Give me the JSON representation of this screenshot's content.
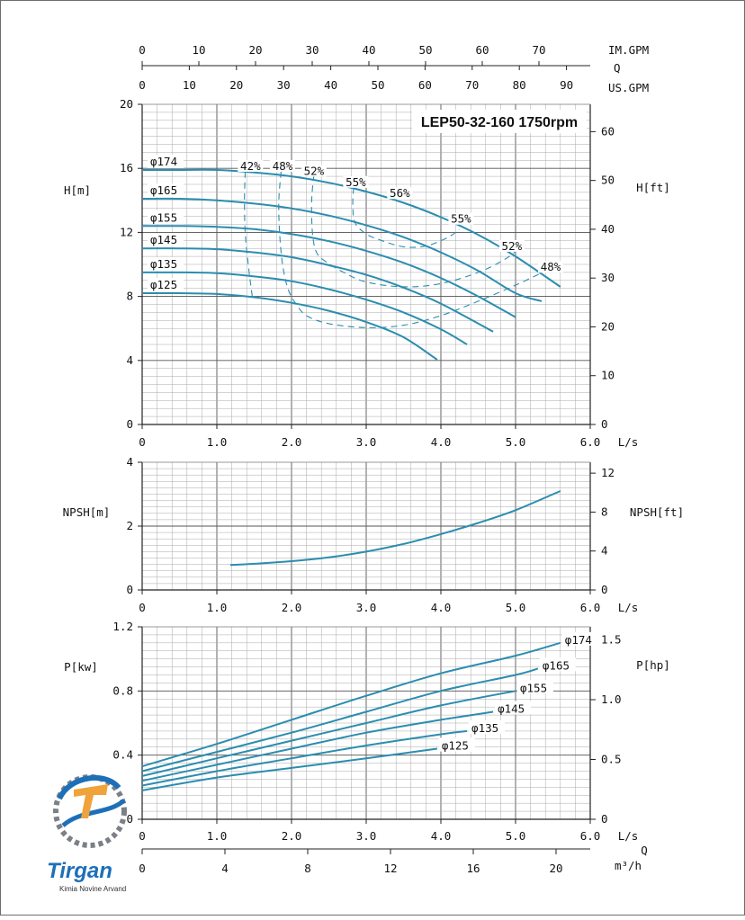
{
  "chart_data": [
    {
      "type": "line",
      "title": "LEP50-32-160 1750rpm",
      "ylabel": "H[m]",
      "ylabel_right": "H[ft]",
      "xlabel": "L/s",
      "xlim": [
        0,
        6
      ],
      "ylim": [
        0,
        20
      ],
      "yticks": [
        0,
        4,
        8,
        12,
        16,
        20
      ],
      "yticks_right": [
        0,
        10,
        20,
        30,
        40,
        50,
        60
      ],
      "xticks": [
        "0",
        "1.0",
        "2.0",
        "3.0",
        "4.0",
        "5.0",
        "6.0"
      ],
      "top_axes": [
        {
          "label": "IM.GPM",
          "ticks": [
            0,
            10,
            20,
            30,
            40,
            50,
            60,
            70
          ]
        },
        {
          "label": "Q",
          "ticks": []
        },
        {
          "label": "US.GPM",
          "ticks": [
            0,
            10,
            20,
            30,
            40,
            50,
            60,
            70,
            80,
            90
          ]
        }
      ],
      "series": [
        {
          "name": "φ174",
          "x": [
            0,
            0.5,
            1.0,
            1.5,
            2.0,
            2.5,
            3.0,
            3.5,
            4.0,
            4.5,
            5.0,
            5.6
          ],
          "y": [
            15.9,
            15.9,
            15.9,
            15.75,
            15.5,
            15.1,
            14.55,
            13.85,
            12.95,
            11.85,
            10.5,
            8.6
          ]
        },
        {
          "name": "φ165",
          "x": [
            0,
            0.5,
            1.0,
            1.5,
            2.0,
            2.5,
            3.0,
            3.5,
            4.0,
            4.5,
            5.0,
            5.35
          ],
          "y": [
            14.1,
            14.1,
            14.0,
            13.8,
            13.5,
            13.05,
            12.45,
            11.7,
            10.75,
            9.6,
            8.2,
            7.7
          ]
        },
        {
          "name": "φ155",
          "x": [
            0,
            0.5,
            1.0,
            1.5,
            2.0,
            2.5,
            3.0,
            3.5,
            4.0,
            4.5,
            5.0
          ],
          "y": [
            12.4,
            12.4,
            12.35,
            12.2,
            11.9,
            11.45,
            10.85,
            10.1,
            9.15,
            8.0,
            6.7
          ]
        },
        {
          "name": "φ145",
          "x": [
            0,
            0.5,
            1.0,
            1.5,
            2.0,
            2.5,
            3.0,
            3.5,
            4.0,
            4.7
          ],
          "y": [
            11.0,
            11.0,
            10.95,
            10.75,
            10.45,
            9.95,
            9.35,
            8.55,
            7.55,
            5.8
          ]
        },
        {
          "name": "φ135",
          "x": [
            0,
            0.5,
            1.0,
            1.5,
            2.0,
            2.5,
            3.0,
            3.5,
            4.0,
            4.35
          ],
          "y": [
            9.5,
            9.5,
            9.45,
            9.25,
            8.95,
            8.45,
            7.8,
            7.0,
            5.95,
            5.0
          ]
        },
        {
          "name": "φ125",
          "x": [
            0,
            0.5,
            1.0,
            1.5,
            2.0,
            2.5,
            3.0,
            3.5,
            3.95
          ],
          "y": [
            8.2,
            8.2,
            8.15,
            7.95,
            7.6,
            7.1,
            6.4,
            5.45,
            4.05
          ]
        }
      ],
      "efficiency_contours": [
        {
          "label": "42%",
          "x": [
            1.38,
            1.37,
            1.38,
            1.42,
            1.48
          ],
          "y": [
            15.8,
            14.0,
            12.0,
            10.0,
            7.8
          ]
        },
        {
          "label": "48%",
          "x": [
            1.86,
            1.83,
            1.84,
            1.88,
            1.95,
            2.05,
            2.2,
            2.5,
            3.0,
            3.5,
            4.0,
            4.5,
            5.0,
            5.45
          ],
          "y": [
            15.8,
            14.0,
            12.0,
            10.0,
            8.5,
            7.6,
            6.8,
            6.3,
            6.05,
            6.2,
            6.8,
            7.7,
            8.7,
            9.7
          ]
        },
        {
          "label": "52%",
          "x": [
            2.3,
            2.27,
            2.28,
            2.33,
            2.45,
            2.7,
            3.0,
            3.5,
            4.0,
            4.5,
            4.85,
            5.05
          ],
          "y": [
            15.6,
            14.0,
            12.0,
            10.8,
            10.2,
            9.5,
            8.9,
            8.6,
            8.8,
            9.5,
            10.3,
            11.0
          ]
        },
        {
          "label": "55%",
          "x": [
            2.83,
            2.82,
            2.85,
            3.0,
            3.2,
            3.5,
            3.8,
            4.1,
            4.25
          ],
          "y": [
            14.8,
            13.7,
            12.6,
            11.9,
            11.5,
            11.1,
            11.15,
            11.7,
            12.2
          ]
        }
      ],
      "annotations": [
        "42%",
        "48%",
        "52%",
        "55%",
        "56%",
        "55%",
        "52%",
        "48%"
      ]
    },
    {
      "type": "line",
      "ylabel": "NPSH[m]",
      "ylabel_right": "NPSH[ft]",
      "xlabel": "L/s",
      "xlim": [
        0,
        6
      ],
      "ylim": [
        0,
        4
      ],
      "yticks": [
        0,
        2,
        4
      ],
      "yticks_right": [
        0,
        4,
        8,
        12
      ],
      "xticks": [
        "0",
        "1.0",
        "2.0",
        "3.0",
        "4.0",
        "5.0",
        "6.0"
      ],
      "series": [
        {
          "name": "",
          "x": [
            1.18,
            1.5,
            2.0,
            2.5,
            3.0,
            3.5,
            4.0,
            4.5,
            5.0,
            5.6
          ],
          "y": [
            0.78,
            0.82,
            0.9,
            1.02,
            1.2,
            1.44,
            1.75,
            2.1,
            2.5,
            3.1
          ]
        }
      ]
    },
    {
      "type": "line",
      "ylabel": "P[kw]",
      "ylabel_right": "P[hp]",
      "xlabel": "L/s",
      "xlim": [
        0,
        6
      ],
      "ylim": [
        0,
        1.2
      ],
      "yticks": [
        0,
        0.4,
        0.8,
        1.2
      ],
      "yticks_right": [
        0,
        0.5,
        1.0,
        1.5
      ],
      "xticks": [
        "0",
        "1.0",
        "2.0",
        "3.0",
        "4.0",
        "5.0",
        "6.0"
      ],
      "bottom_axis": {
        "label": "Q",
        "unit": "m³/h",
        "ticks": [
          0,
          4,
          8,
          12,
          16,
          20
        ]
      },
      "series": [
        {
          "name": "φ174",
          "x": [
            0,
            1,
            2,
            3,
            4,
            5,
            5.6
          ],
          "y": [
            0.33,
            0.47,
            0.62,
            0.77,
            0.91,
            1.02,
            1.1
          ]
        },
        {
          "name": "φ165",
          "x": [
            0,
            1,
            2,
            3,
            4,
            5,
            5.3
          ],
          "y": [
            0.3,
            0.42,
            0.54,
            0.67,
            0.8,
            0.9,
            0.94
          ]
        },
        {
          "name": "φ155",
          "x": [
            0,
            1,
            2,
            3,
            4,
            5
          ],
          "y": [
            0.27,
            0.38,
            0.49,
            0.6,
            0.71,
            0.8
          ]
        },
        {
          "name": "φ145",
          "x": [
            0,
            1,
            2,
            3,
            4,
            4.7
          ],
          "y": [
            0.24,
            0.34,
            0.44,
            0.54,
            0.62,
            0.67
          ]
        },
        {
          "name": "φ135",
          "x": [
            0,
            1,
            2,
            3,
            4,
            4.35
          ],
          "y": [
            0.21,
            0.3,
            0.38,
            0.46,
            0.53,
            0.55
          ]
        },
        {
          "name": "φ125",
          "x": [
            0,
            1,
            2,
            3,
            3.95
          ],
          "y": [
            0.18,
            0.26,
            0.32,
            0.38,
            0.44
          ]
        }
      ]
    }
  ],
  "logo": {
    "name": "Tirgan",
    "subtitle": "Kimia Novine Arvand"
  },
  "colors": {
    "curve": "#2b8db0",
    "grid": "#8a8a8a",
    "axis": "#222222",
    "logo_blue": "#1d6fb8",
    "logo_orange": "#f0a33a"
  }
}
